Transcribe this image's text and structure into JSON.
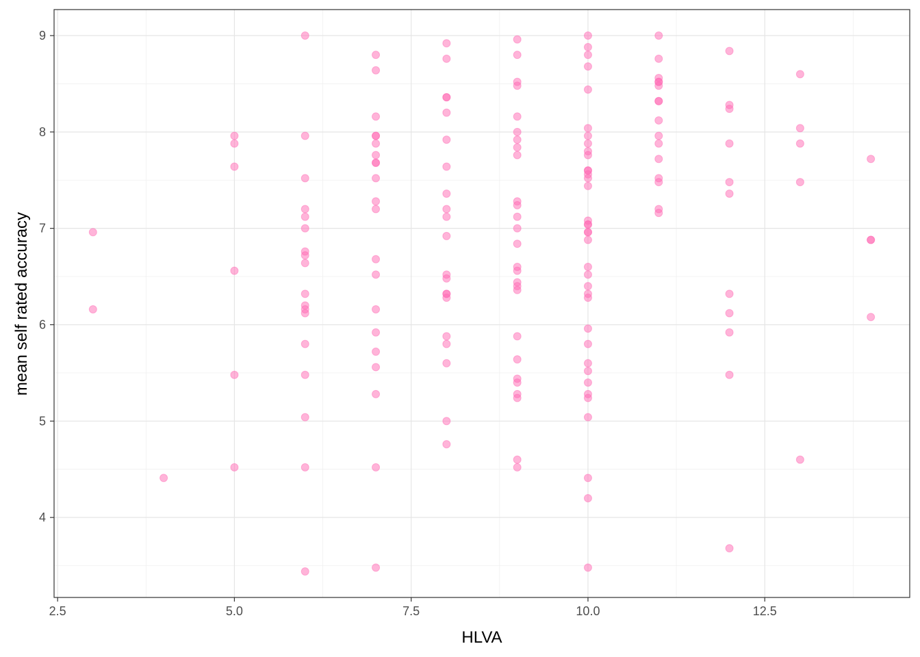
{
  "chart_data": {
    "type": "scatter",
    "title": "",
    "xlabel": "HLVA",
    "ylabel": "mean self rated accuracy",
    "xlim": [
      2.45,
      14.55
    ],
    "ylim": [
      3.17,
      9.27
    ],
    "x_ticks": [
      2.5,
      5.0,
      7.5,
      10.0,
      12.5
    ],
    "x_tick_labels": [
      "2.5",
      "5.0",
      "7.5",
      "10.0",
      "12.5"
    ],
    "y_ticks": [
      4,
      5,
      6,
      7,
      8,
      9
    ],
    "y_tick_labels": [
      "4",
      "5",
      "6",
      "7",
      "8",
      "9"
    ],
    "grid": true,
    "point_color": "#ff69b4",
    "point_opacity": 0.5,
    "series": [
      {
        "points": [
          {
            "x": 3,
            "y": 6.96
          },
          {
            "x": 3,
            "y": 6.16
          },
          {
            "x": 4,
            "y": 4.41
          },
          {
            "x": 5,
            "y": 7.96
          },
          {
            "x": 5,
            "y": 7.88
          },
          {
            "x": 5,
            "y": 7.64
          },
          {
            "x": 5,
            "y": 6.56
          },
          {
            "x": 5,
            "y": 5.48
          },
          {
            "x": 5,
            "y": 4.52
          },
          {
            "x": 6,
            "y": 9.0
          },
          {
            "x": 6,
            "y": 7.96
          },
          {
            "x": 6,
            "y": 7.52
          },
          {
            "x": 6,
            "y": 7.2
          },
          {
            "x": 6,
            "y": 7.12
          },
          {
            "x": 6,
            "y": 7.0
          },
          {
            "x": 6,
            "y": 6.76
          },
          {
            "x": 6,
            "y": 6.72
          },
          {
            "x": 6,
            "y": 6.64
          },
          {
            "x": 6,
            "y": 6.32
          },
          {
            "x": 6,
            "y": 6.2
          },
          {
            "x": 6,
            "y": 6.16
          },
          {
            "x": 6,
            "y": 6.12
          },
          {
            "x": 6,
            "y": 5.8
          },
          {
            "x": 6,
            "y": 5.48
          },
          {
            "x": 6,
            "y": 5.04
          },
          {
            "x": 6,
            "y": 4.52
          },
          {
            "x": 6,
            "y": 3.44
          },
          {
            "x": 7,
            "y": 8.8
          },
          {
            "x": 7,
            "y": 8.64
          },
          {
            "x": 7,
            "y": 8.16
          },
          {
            "x": 7,
            "y": 7.96
          },
          {
            "x": 7,
            "y": 7.96
          },
          {
            "x": 7,
            "y": 7.88
          },
          {
            "x": 7,
            "y": 7.76
          },
          {
            "x": 7,
            "y": 7.68
          },
          {
            "x": 7,
            "y": 7.68
          },
          {
            "x": 7,
            "y": 7.52
          },
          {
            "x": 7,
            "y": 7.28
          },
          {
            "x": 7,
            "y": 7.2
          },
          {
            "x": 7,
            "y": 6.68
          },
          {
            "x": 7,
            "y": 6.52
          },
          {
            "x": 7,
            "y": 6.16
          },
          {
            "x": 7,
            "y": 5.92
          },
          {
            "x": 7,
            "y": 5.72
          },
          {
            "x": 7,
            "y": 5.56
          },
          {
            "x": 7,
            "y": 5.28
          },
          {
            "x": 7,
            "y": 4.52
          },
          {
            "x": 7,
            "y": 3.48
          },
          {
            "x": 8,
            "y": 8.92
          },
          {
            "x": 8,
            "y": 8.76
          },
          {
            "x": 8,
            "y": 8.36
          },
          {
            "x": 8,
            "y": 8.36
          },
          {
            "x": 8,
            "y": 8.2
          },
          {
            "x": 8,
            "y": 7.92
          },
          {
            "x": 8,
            "y": 7.64
          },
          {
            "x": 8,
            "y": 7.36
          },
          {
            "x": 8,
            "y": 7.2
          },
          {
            "x": 8,
            "y": 7.12
          },
          {
            "x": 8,
            "y": 6.92
          },
          {
            "x": 8,
            "y": 6.52
          },
          {
            "x": 8,
            "y": 6.48
          },
          {
            "x": 8,
            "y": 6.32
          },
          {
            "x": 8,
            "y": 6.32
          },
          {
            "x": 8,
            "y": 6.28
          },
          {
            "x": 8,
            "y": 5.88
          },
          {
            "x": 8,
            "y": 5.8
          },
          {
            "x": 8,
            "y": 5.6
          },
          {
            "x": 8,
            "y": 5.0
          },
          {
            "x": 8,
            "y": 4.76
          },
          {
            "x": 9,
            "y": 8.96
          },
          {
            "x": 9,
            "y": 8.8
          },
          {
            "x": 9,
            "y": 8.52
          },
          {
            "x": 9,
            "y": 8.48
          },
          {
            "x": 9,
            "y": 8.16
          },
          {
            "x": 9,
            "y": 8.0
          },
          {
            "x": 9,
            "y": 7.92
          },
          {
            "x": 9,
            "y": 7.84
          },
          {
            "x": 9,
            "y": 7.76
          },
          {
            "x": 9,
            "y": 7.28
          },
          {
            "x": 9,
            "y": 7.24
          },
          {
            "x": 9,
            "y": 7.12
          },
          {
            "x": 9,
            "y": 7.0
          },
          {
            "x": 9,
            "y": 6.84
          },
          {
            "x": 9,
            "y": 6.6
          },
          {
            "x": 9,
            "y": 6.56
          },
          {
            "x": 9,
            "y": 6.44
          },
          {
            "x": 9,
            "y": 6.4
          },
          {
            "x": 9,
            "y": 6.36
          },
          {
            "x": 9,
            "y": 5.88
          },
          {
            "x": 9,
            "y": 5.64
          },
          {
            "x": 9,
            "y": 5.44
          },
          {
            "x": 9,
            "y": 5.4
          },
          {
            "x": 9,
            "y": 5.28
          },
          {
            "x": 9,
            "y": 5.24
          },
          {
            "x": 9,
            "y": 4.6
          },
          {
            "x": 9,
            "y": 4.52
          },
          {
            "x": 10,
            "y": 9.0
          },
          {
            "x": 10,
            "y": 8.88
          },
          {
            "x": 10,
            "y": 8.8
          },
          {
            "x": 10,
            "y": 8.68
          },
          {
            "x": 10,
            "y": 8.44
          },
          {
            "x": 10,
            "y": 8.04
          },
          {
            "x": 10,
            "y": 7.96
          },
          {
            "x": 10,
            "y": 7.88
          },
          {
            "x": 10,
            "y": 7.8
          },
          {
            "x": 10,
            "y": 7.76
          },
          {
            "x": 10,
            "y": 7.6
          },
          {
            "x": 10,
            "y": 7.6
          },
          {
            "x": 10,
            "y": 7.56
          },
          {
            "x": 10,
            "y": 7.52
          },
          {
            "x": 10,
            "y": 7.44
          },
          {
            "x": 10,
            "y": 7.08
          },
          {
            "x": 10,
            "y": 7.04
          },
          {
            "x": 10,
            "y": 7.04
          },
          {
            "x": 10,
            "y": 6.96
          },
          {
            "x": 10,
            "y": 6.96
          },
          {
            "x": 10,
            "y": 6.88
          },
          {
            "x": 10,
            "y": 6.6
          },
          {
            "x": 10,
            "y": 6.52
          },
          {
            "x": 10,
            "y": 6.4
          },
          {
            "x": 10,
            "y": 6.32
          },
          {
            "x": 10,
            "y": 6.28
          },
          {
            "x": 10,
            "y": 5.96
          },
          {
            "x": 10,
            "y": 5.8
          },
          {
            "x": 10,
            "y": 5.6
          },
          {
            "x": 10,
            "y": 5.52
          },
          {
            "x": 10,
            "y": 5.4
          },
          {
            "x": 10,
            "y": 5.28
          },
          {
            "x": 10,
            "y": 5.24
          },
          {
            "x": 10,
            "y": 5.04
          },
          {
            "x": 10,
            "y": 4.41
          },
          {
            "x": 10,
            "y": 4.2
          },
          {
            "x": 10,
            "y": 3.48
          },
          {
            "x": 11,
            "y": 9.0
          },
          {
            "x": 11,
            "y": 8.76
          },
          {
            "x": 11,
            "y": 8.56
          },
          {
            "x": 11,
            "y": 8.52
          },
          {
            "x": 11,
            "y": 8.52
          },
          {
            "x": 11,
            "y": 8.48
          },
          {
            "x": 11,
            "y": 8.32
          },
          {
            "x": 11,
            "y": 8.32
          },
          {
            "x": 11,
            "y": 8.12
          },
          {
            "x": 11,
            "y": 7.96
          },
          {
            "x": 11,
            "y": 7.88
          },
          {
            "x": 11,
            "y": 7.72
          },
          {
            "x": 11,
            "y": 7.52
          },
          {
            "x": 11,
            "y": 7.48
          },
          {
            "x": 11,
            "y": 7.2
          },
          {
            "x": 11,
            "y": 7.16
          },
          {
            "x": 12,
            "y": 8.84
          },
          {
            "x": 12,
            "y": 8.28
          },
          {
            "x": 12,
            "y": 8.24
          },
          {
            "x": 12,
            "y": 7.88
          },
          {
            "x": 12,
            "y": 7.48
          },
          {
            "x": 12,
            "y": 7.36
          },
          {
            "x": 12,
            "y": 6.32
          },
          {
            "x": 12,
            "y": 6.12
          },
          {
            "x": 12,
            "y": 5.92
          },
          {
            "x": 12,
            "y": 5.48
          },
          {
            "x": 12,
            "y": 3.68
          },
          {
            "x": 13,
            "y": 8.6
          },
          {
            "x": 13,
            "y": 8.04
          },
          {
            "x": 13,
            "y": 7.88
          },
          {
            "x": 13,
            "y": 7.48
          },
          {
            "x": 13,
            "y": 4.6
          },
          {
            "x": 14,
            "y": 7.72
          },
          {
            "x": 14,
            "y": 6.88
          },
          {
            "x": 14,
            "y": 6.88
          },
          {
            "x": 14,
            "y": 6.08
          }
        ]
      }
    ]
  }
}
